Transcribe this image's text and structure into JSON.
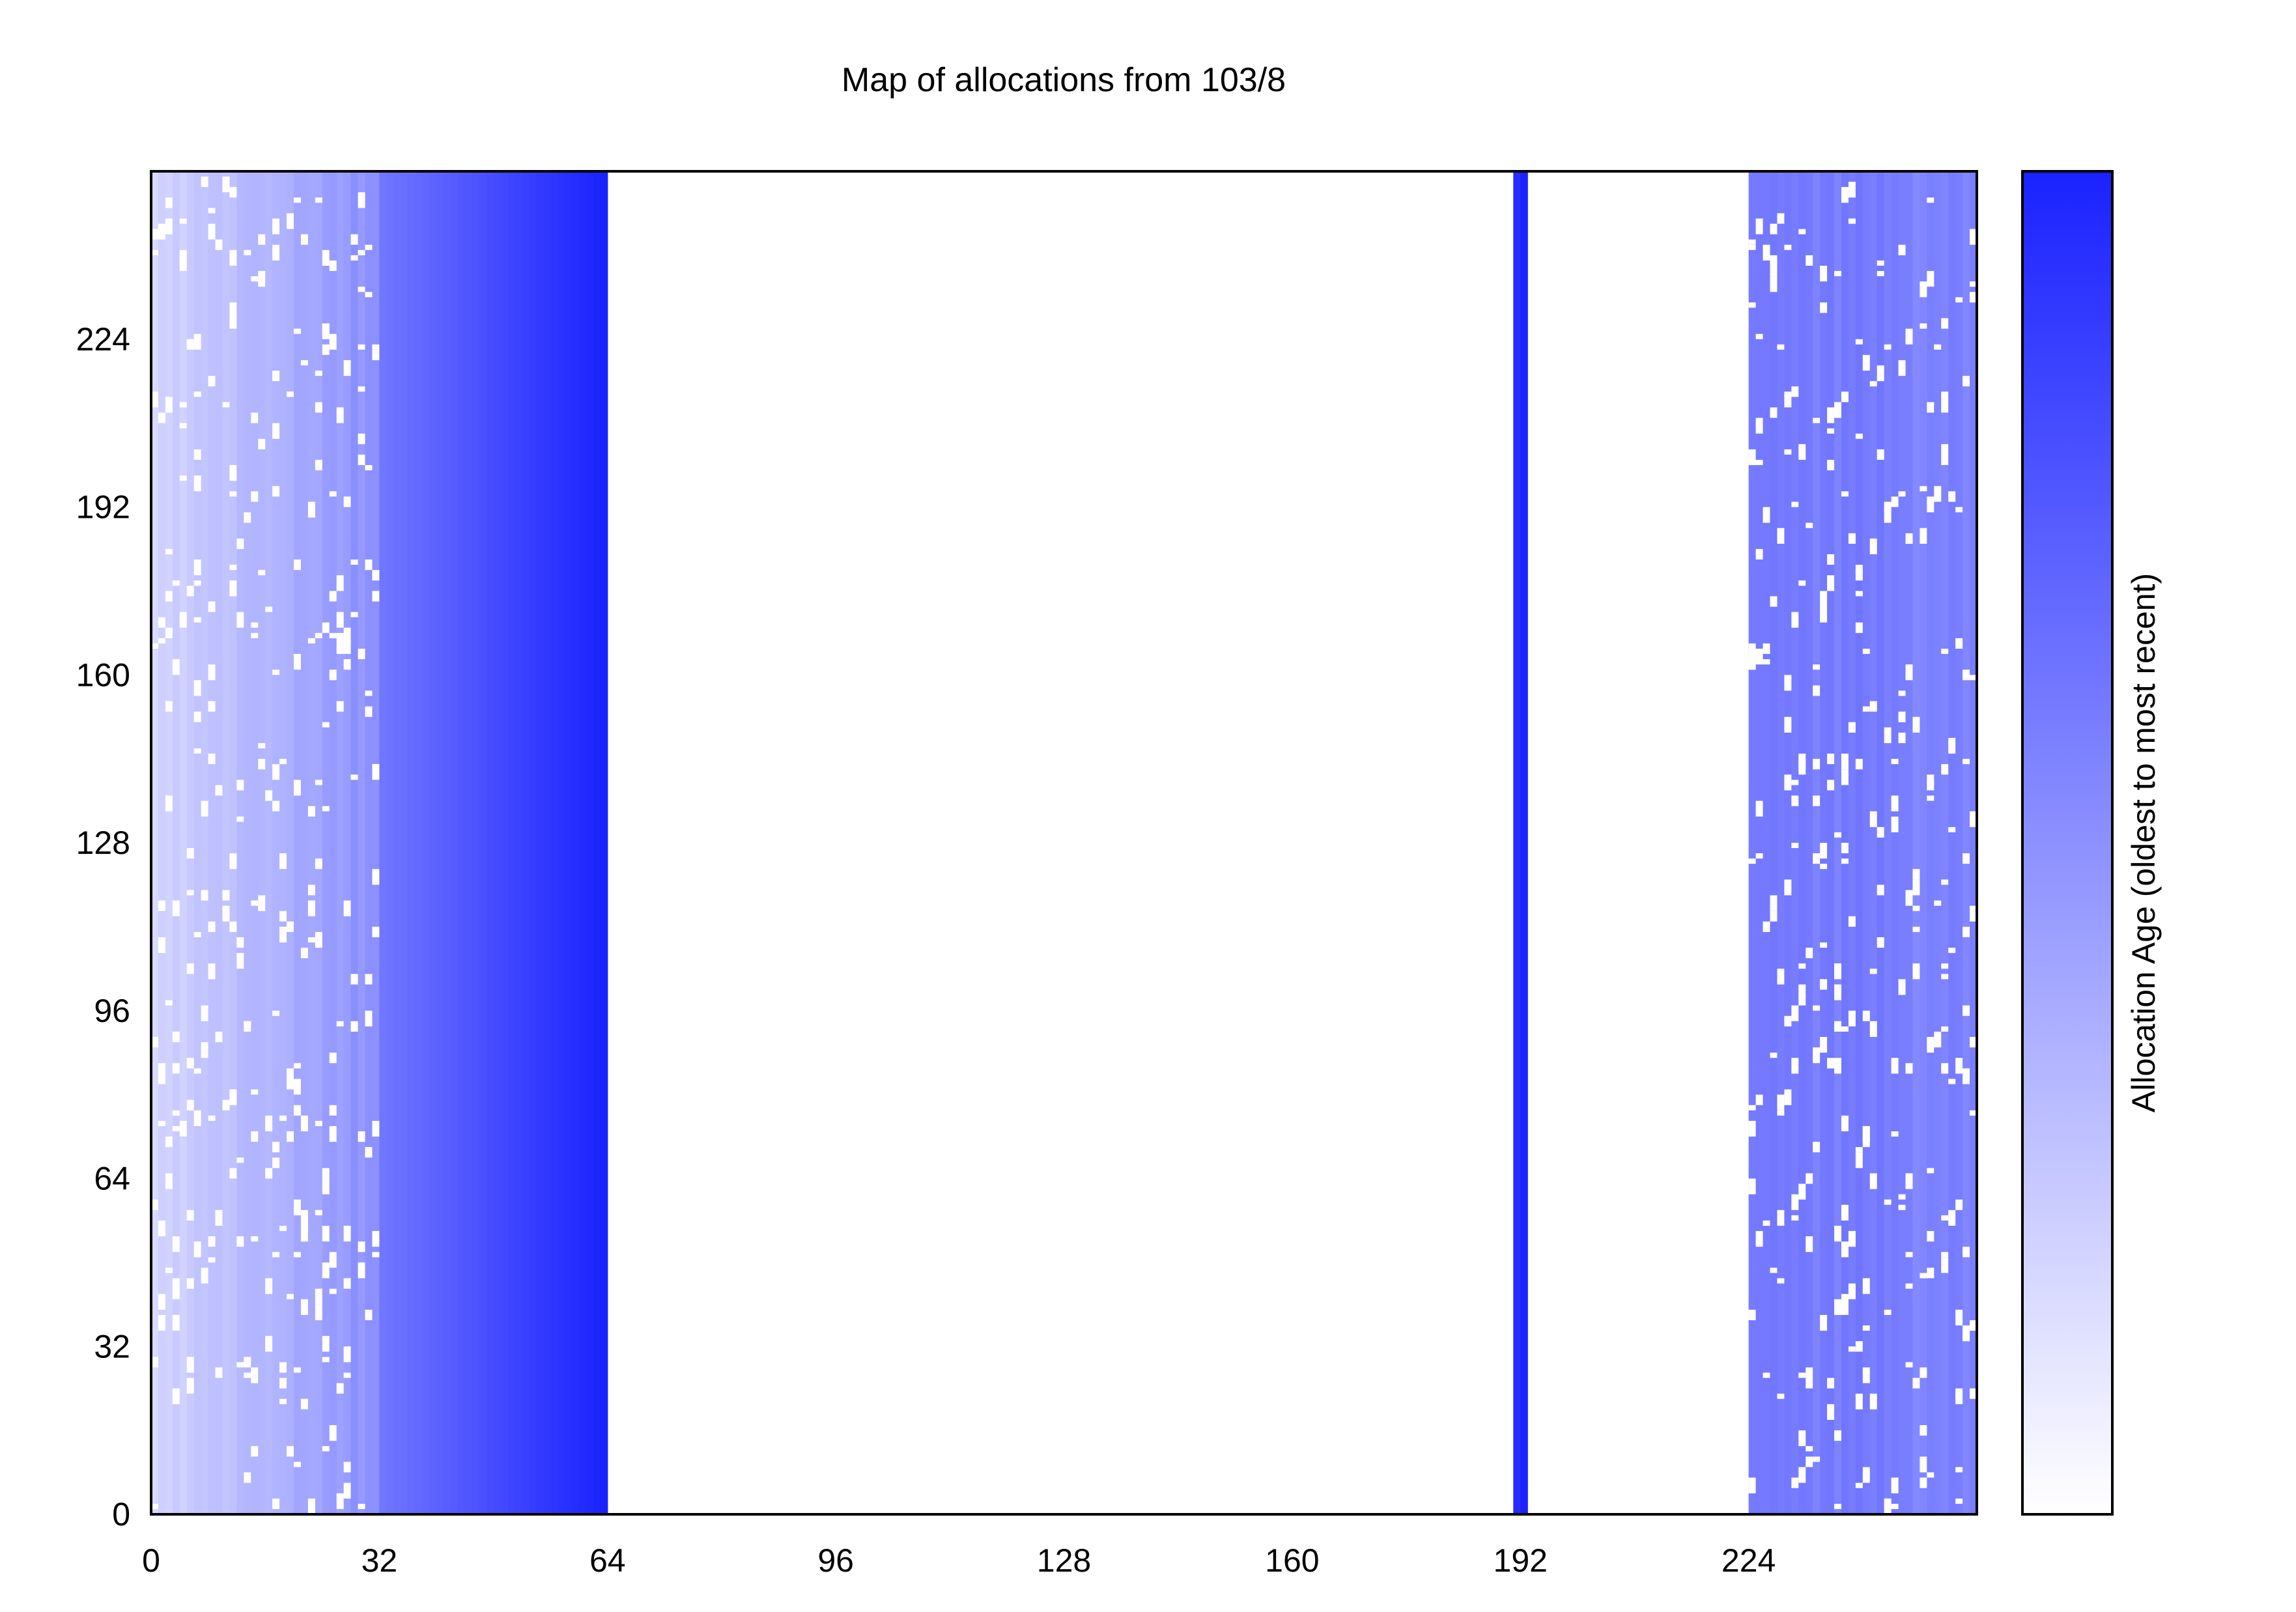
{
  "chart_data": {
    "type": "heatmap",
    "title": "Map of allocations from 103/8",
    "xlabel": "",
    "ylabel": "",
    "xlim": [
      0,
      256
    ],
    "ylim": [
      0,
      256
    ],
    "x_ticks": [
      "0",
      "32",
      "64",
      "96",
      "128",
      "160",
      "192",
      "224"
    ],
    "y_ticks": [
      "0",
      "32",
      "64",
      "96",
      "128",
      "160",
      "192",
      "224"
    ],
    "colorbar": {
      "label": "Allocation Age (oldest to most recent)",
      "min_color": "#ffffff",
      "max_color": "#1a22ff"
    },
    "colors": {
      "oldest": "#ffffff",
      "newest": "#1a22ff",
      "unallocated": "#ffffff"
    },
    "allocated_bands": [
      {
        "x0": 0,
        "x1": 32,
        "age_start": 0.18,
        "age_end": 0.5,
        "sparse": true
      },
      {
        "x0": 32,
        "x1": 64,
        "age_start": 0.62,
        "age_end": 1.0,
        "sparse": false
      },
      {
        "x0": 191,
        "x1": 193,
        "age_start": 0.95,
        "age_end": 1.0,
        "sparse": false
      },
      {
        "x0": 224,
        "x1": 256,
        "age_start": 0.62,
        "age_end": 0.55,
        "sparse": true
      }
    ]
  }
}
